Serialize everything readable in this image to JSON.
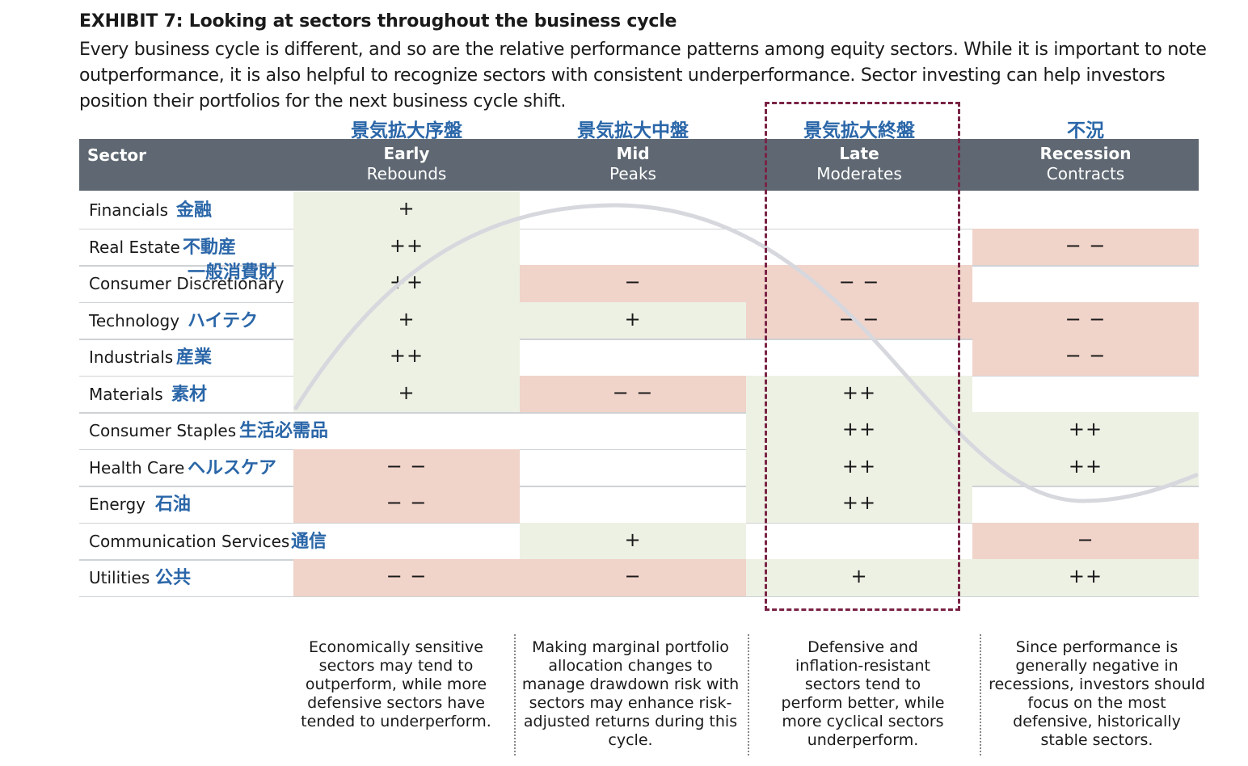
{
  "title": "EXHIBIT 7: Looking at sectors throughout the business cycle",
  "subtitle": "Every business cycle is different, and so are the relative performance patterns among equity sectors. While it is important to note outperformance, it is also helpful to recognize sectors with consistent underperformance. Sector investing can help investors position their portfolios for the next business cycle shift.",
  "phases_jp": [
    "景気拡大序盤",
    "景気拡大中盤",
    "景気拡大終盤",
    "不況"
  ],
  "header": {
    "sector": "Sector",
    "phases": [
      {
        "name": "Early",
        "desc": "Rebounds"
      },
      {
        "name": "Mid",
        "desc": "Peaks"
      },
      {
        "name": "Late",
        "desc": "Moderates"
      },
      {
        "name": "Recession",
        "desc": "Contracts"
      }
    ]
  },
  "rows": [
    {
      "sector": "Financials",
      "jp": "金融",
      "marks": [
        "+",
        "",
        "",
        ""
      ]
    },
    {
      "sector": "Real Estate",
      "jp": "不動産",
      "marks": [
        "++",
        "",
        "",
        "− −"
      ]
    },
    {
      "sector": "Consumer Discretionary",
      "jp": "一般消費財",
      "marks": [
        "++",
        "−",
        "− −",
        ""
      ]
    },
    {
      "sector": "Technology",
      "jp": "ハイテク",
      "marks": [
        "+",
        "+",
        "− −",
        "− −"
      ]
    },
    {
      "sector": "Industrials",
      "jp": "産業",
      "marks": [
        "++",
        "",
        "",
        "− −"
      ]
    },
    {
      "sector": "Materials",
      "jp": "素材",
      "marks": [
        "+",
        "− −",
        "++",
        ""
      ]
    },
    {
      "sector": "Consumer Staples",
      "jp": "生活必需品",
      "marks": [
        "",
        "",
        "++",
        "++"
      ]
    },
    {
      "sector": "Health Care",
      "jp": "ヘルスケア",
      "marks": [
        "− −",
        "",
        "++",
        "++"
      ]
    },
    {
      "sector": "Energy",
      "jp": "石油",
      "marks": [
        "− −",
        "",
        "++",
        ""
      ]
    },
    {
      "sector": "Communication Services",
      "jp": "通信",
      "marks": [
        "",
        "+",
        "",
        "−"
      ]
    },
    {
      "sector": "Utilities",
      "jp": "公共",
      "marks": [
        "− −",
        "−",
        "+",
        "++"
      ]
    }
  ],
  "notes": [
    "Economically sensitive sectors may tend to outperform, while more defensive sectors have tended to underperform.",
    "Making marginal portfolio allocation changes to manage drawdown risk with sectors may enhance risk-adjusted returns during this cycle.",
    "Defensive and inflation-resistant sectors tend to perform better, while more cyclical sectors underperform.",
    "Since performance is generally negative in recessions, investors should focus on the most defensive, historically stable sectors."
  ],
  "colors": {
    "header_bg": "#5f6872",
    "positive_bg": "#edf1e4",
    "negative_bg": "#f0d3c9",
    "jp_text": "#2a66a8",
    "highlight_border": "#7a2346"
  }
}
